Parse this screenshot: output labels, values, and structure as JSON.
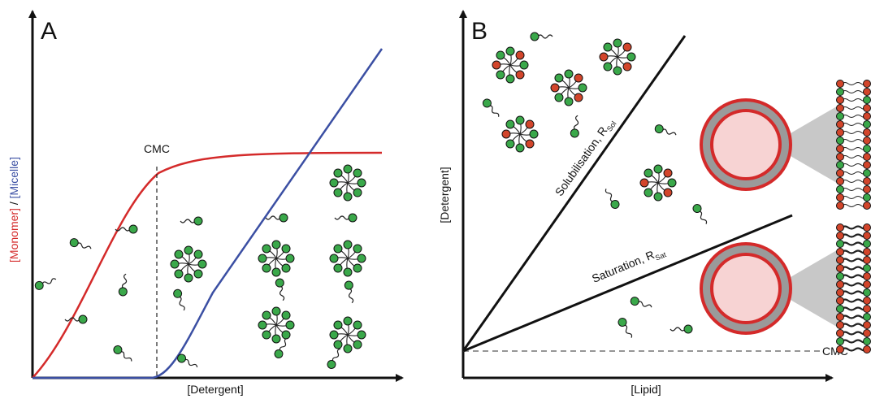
{
  "panel_a": {
    "label": "A",
    "y_label": {
      "monomer": "[Monomer]",
      "separator": " / ",
      "micelle": "[Micelle]"
    },
    "cmc": "CMC",
    "x_label": "[Detergent]"
  },
  "panel_b": {
    "label": "B",
    "y_label": "[Detergent]",
    "x_label": "[Lipid]",
    "solubilisation": {
      "text": "Solubilisation, R",
      "sub": "Sol"
    },
    "saturation": {
      "text": "Saturation, R",
      "sub": "Sat"
    },
    "cmc": "CMC"
  }
}
